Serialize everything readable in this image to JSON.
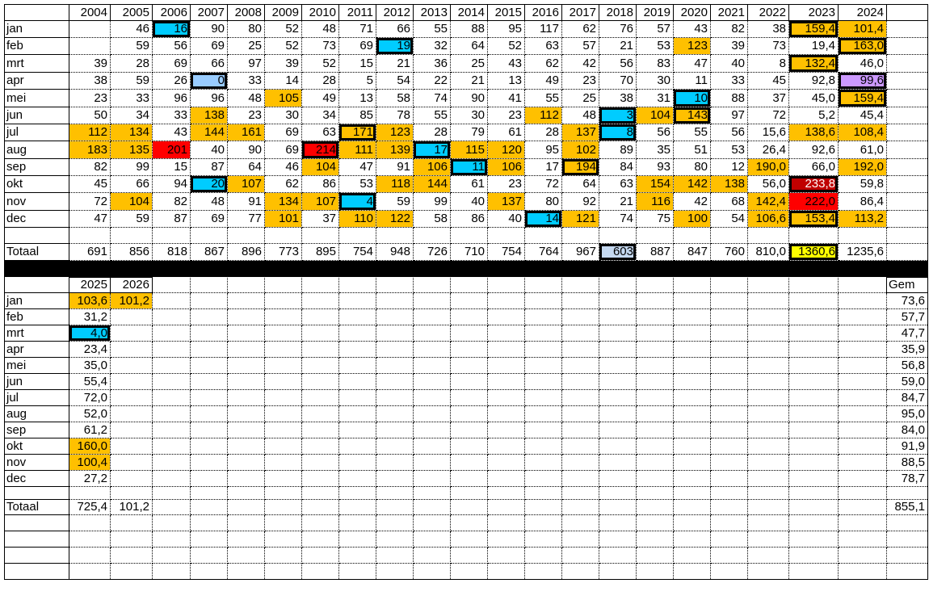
{
  "colors": {
    "orange": "#FFC000",
    "cyan": "#00CCFF",
    "lightblue": "#99CCFF",
    "red": "#FF0000",
    "darkred": "#C00000",
    "purple": "#CC99FF",
    "yellow": "#FFFF00",
    "grayblue": "#C5D9F1"
  },
  "upper": {
    "years": [
      "2004",
      "2005",
      "2006",
      "2007",
      "2008",
      "2009",
      "2010",
      "2011",
      "2012",
      "2013",
      "2014",
      "2015",
      "2016",
      "2017",
      "2018",
      "2019",
      "2020",
      "2021",
      "2022",
      "2023",
      "2024"
    ],
    "rows": [
      {
        "label": "jan",
        "values": [
          "",
          "46",
          "16",
          "90",
          "80",
          "52",
          "48",
          "71",
          "66",
          "55",
          "88",
          "95",
          "117",
          "62",
          "76",
          "57",
          "43",
          "82",
          "38",
          "159,4",
          "101,4"
        ]
      },
      {
        "label": "feb",
        "values": [
          "",
          "59",
          "56",
          "69",
          "25",
          "52",
          "73",
          "69",
          "19",
          "32",
          "64",
          "52",
          "63",
          "57",
          "21",
          "53",
          "123",
          "39",
          "73",
          "19,4",
          "163,0"
        ]
      },
      {
        "label": "mrt",
        "values": [
          "39",
          "28",
          "69",
          "66",
          "97",
          "39",
          "52",
          "15",
          "21",
          "36",
          "25",
          "43",
          "62",
          "42",
          "56",
          "83",
          "47",
          "40",
          "8",
          "132,4",
          "46,0"
        ]
      },
      {
        "label": "apr",
        "values": [
          "38",
          "59",
          "26",
          "0",
          "33",
          "14",
          "28",
          "5",
          "54",
          "22",
          "21",
          "13",
          "49",
          "23",
          "70",
          "30",
          "11",
          "33",
          "45",
          "92,8",
          "99,6"
        ]
      },
      {
        "label": "mei",
        "values": [
          "23",
          "33",
          "96",
          "96",
          "48",
          "105",
          "49",
          "13",
          "58",
          "74",
          "90",
          "41",
          "55",
          "25",
          "38",
          "31",
          "10",
          "88",
          "37",
          "45,0",
          "159,4"
        ]
      },
      {
        "label": "jun",
        "values": [
          "50",
          "34",
          "33",
          "138",
          "23",
          "30",
          "34",
          "85",
          "78",
          "55",
          "30",
          "23",
          "112",
          "48",
          "3",
          "104",
          "143",
          "97",
          "72",
          "5,2",
          "45,4"
        ]
      },
      {
        "label": "jul",
        "values": [
          "112",
          "134",
          "43",
          "144",
          "161",
          "69",
          "63",
          "171",
          "123",
          "28",
          "79",
          "61",
          "28",
          "137",
          "8",
          "56",
          "55",
          "56",
          "15,6",
          "138,6",
          "108,4"
        ]
      },
      {
        "label": "aug",
        "values": [
          "183",
          "135",
          "201",
          "40",
          "90",
          "69",
          "214",
          "111",
          "139",
          "17",
          "115",
          "120",
          "95",
          "102",
          "89",
          "35",
          "51",
          "53",
          "26,4",
          "92,6",
          "61,0"
        ]
      },
      {
        "label": "sep",
        "values": [
          "82",
          "99",
          "15",
          "87",
          "64",
          "46",
          "104",
          "47",
          "91",
          "106",
          "11",
          "106",
          "17",
          "194",
          "84",
          "93",
          "80",
          "12",
          "190,0",
          "66,0",
          "192,0"
        ]
      },
      {
        "label": "okt",
        "values": [
          "45",
          "66",
          "94",
          "20",
          "107",
          "62",
          "86",
          "53",
          "118",
          "144",
          "61",
          "23",
          "72",
          "64",
          "63",
          "154",
          "142",
          "138",
          "56,0",
          "233,8",
          "59,8"
        ]
      },
      {
        "label": "nov",
        "values": [
          "72",
          "104",
          "82",
          "48",
          "91",
          "134",
          "107",
          "4",
          "59",
          "99",
          "40",
          "137",
          "80",
          "92",
          "21",
          "116",
          "42",
          "68",
          "142,4",
          "222,0",
          "86,4"
        ]
      },
      {
        "label": "dec",
        "values": [
          "47",
          "59",
          "87",
          "69",
          "77",
          "101",
          "37",
          "110",
          "122",
          "58",
          "86",
          "40",
          "14",
          "121",
          "74",
          "75",
          "100",
          "54",
          "106,6",
          "153,4",
          "113,2"
        ]
      }
    ],
    "total": {
      "label": "Totaal",
      "values": [
        "691",
        "856",
        "818",
        "867",
        "896",
        "773",
        "895",
        "754",
        "948",
        "726",
        "710",
        "754",
        "764",
        "967",
        "603",
        "887",
        "847",
        "760",
        "810,0",
        "1360,6",
        "1235,6"
      ]
    },
    "highlights": [
      {
        "row": "jul",
        "year": "2004",
        "fill": "orange"
      },
      {
        "row": "aug",
        "year": "2004",
        "fill": "orange"
      },
      {
        "row": "jul",
        "year": "2005",
        "fill": "orange"
      },
      {
        "row": "aug",
        "year": "2005",
        "fill": "orange"
      },
      {
        "row": "nov",
        "year": "2005",
        "fill": "orange"
      },
      {
        "row": "jan",
        "year": "2006",
        "fill": "cyan",
        "boxed": true
      },
      {
        "row": "aug",
        "year": "2006",
        "fill": "red"
      },
      {
        "row": "apr",
        "year": "2007",
        "fill": "lightblue",
        "boxed": true
      },
      {
        "row": "jun",
        "year": "2007",
        "fill": "orange"
      },
      {
        "row": "jul",
        "year": "2007",
        "fill": "orange"
      },
      {
        "row": "okt",
        "year": "2007",
        "fill": "cyan",
        "boxed": true
      },
      {
        "row": "jul",
        "year": "2008",
        "fill": "orange"
      },
      {
        "row": "okt",
        "year": "2008",
        "fill": "orange"
      },
      {
        "row": "mei",
        "year": "2009",
        "fill": "orange"
      },
      {
        "row": "nov",
        "year": "2009",
        "fill": "orange"
      },
      {
        "row": "dec",
        "year": "2009",
        "fill": "orange"
      },
      {
        "row": "aug",
        "year": "2010",
        "fill": "red",
        "boxed": true
      },
      {
        "row": "sep",
        "year": "2010",
        "fill": "orange"
      },
      {
        "row": "nov",
        "year": "2010",
        "fill": "orange"
      },
      {
        "row": "jul",
        "year": "2011",
        "fill": "orange",
        "boxed": true
      },
      {
        "row": "aug",
        "year": "2011",
        "fill": "orange"
      },
      {
        "row": "nov",
        "year": "2011",
        "fill": "cyan",
        "boxed": true
      },
      {
        "row": "dec",
        "year": "2011",
        "fill": "orange"
      },
      {
        "row": "feb",
        "year": "2012",
        "fill": "cyan",
        "boxed": true
      },
      {
        "row": "jul",
        "year": "2012",
        "fill": "orange"
      },
      {
        "row": "aug",
        "year": "2012",
        "fill": "orange"
      },
      {
        "row": "okt",
        "year": "2012",
        "fill": "orange"
      },
      {
        "row": "dec",
        "year": "2012",
        "fill": "orange"
      },
      {
        "row": "aug",
        "year": "2013",
        "fill": "cyan",
        "boxed": true
      },
      {
        "row": "sep",
        "year": "2013",
        "fill": "orange"
      },
      {
        "row": "okt",
        "year": "2013",
        "fill": "orange"
      },
      {
        "row": "aug",
        "year": "2014",
        "fill": "orange"
      },
      {
        "row": "sep",
        "year": "2014",
        "fill": "cyan",
        "boxed": true
      },
      {
        "row": "aug",
        "year": "2015",
        "fill": "orange"
      },
      {
        "row": "sep",
        "year": "2015",
        "fill": "orange"
      },
      {
        "row": "nov",
        "year": "2015",
        "fill": "orange"
      },
      {
        "row": "jun",
        "year": "2016",
        "fill": "orange"
      },
      {
        "row": "dec",
        "year": "2016",
        "fill": "cyan",
        "boxed": true
      },
      {
        "row": "jul",
        "year": "2017",
        "fill": "orange"
      },
      {
        "row": "aug",
        "year": "2017",
        "fill": "orange"
      },
      {
        "row": "sep",
        "year": "2017",
        "fill": "orange",
        "boxed": true
      },
      {
        "row": "dec",
        "year": "2017",
        "fill": "orange"
      },
      {
        "row": "jun",
        "year": "2018",
        "fill": "cyan",
        "boxed": true
      },
      {
        "row": "jul",
        "year": "2018",
        "fill": "cyan",
        "boxed": true
      },
      {
        "row": "Totaal",
        "year": "2018",
        "fill": "grayblue",
        "boxed": true
      },
      {
        "row": "jun",
        "year": "2019",
        "fill": "orange"
      },
      {
        "row": "okt",
        "year": "2019",
        "fill": "orange"
      },
      {
        "row": "nov",
        "year": "2019",
        "fill": "orange"
      },
      {
        "row": "feb",
        "year": "2020",
        "fill": "orange"
      },
      {
        "row": "mei",
        "year": "2020",
        "fill": "cyan",
        "boxed": true
      },
      {
        "row": "jun",
        "year": "2020",
        "fill": "orange",
        "boxed": true
      },
      {
        "row": "okt",
        "year": "2020",
        "fill": "orange"
      },
      {
        "row": "dec",
        "year": "2020",
        "fill": "orange"
      },
      {
        "row": "okt",
        "year": "2021",
        "fill": "orange"
      },
      {
        "row": "sep",
        "year": "2022",
        "fill": "orange"
      },
      {
        "row": "nov",
        "year": "2022",
        "fill": "orange"
      },
      {
        "row": "dec",
        "year": "2022",
        "fill": "orange"
      },
      {
        "row": "jan",
        "year": "2023",
        "fill": "orange",
        "boxed": true
      },
      {
        "row": "mrt",
        "year": "2023",
        "fill": "orange",
        "boxed": true
      },
      {
        "row": "jul",
        "year": "2023",
        "fill": "orange"
      },
      {
        "row": "okt",
        "year": "2023",
        "fill": "darkred",
        "boxed": true,
        "text": "#FFFFFF"
      },
      {
        "row": "nov",
        "year": "2023",
        "fill": "red"
      },
      {
        "row": "dec",
        "year": "2023",
        "fill": "orange",
        "boxed": true
      },
      {
        "row": "Totaal",
        "year": "2023",
        "fill": "yellow",
        "boxed": true
      },
      {
        "row": "jan",
        "year": "2024",
        "fill": "orange"
      },
      {
        "row": "feb",
        "year": "2024",
        "fill": "orange",
        "boxed": true
      },
      {
        "row": "apr",
        "year": "2024",
        "fill": "purple",
        "boxed": true
      },
      {
        "row": "mei",
        "year": "2024",
        "fill": "orange",
        "boxed": true
      },
      {
        "row": "jul",
        "year": "2024",
        "fill": "orange"
      },
      {
        "row": "sep",
        "year": "2024",
        "fill": "orange"
      },
      {
        "row": "dec",
        "year": "2024",
        "fill": "orange"
      }
    ]
  },
  "lower": {
    "years": [
      "2025",
      "2026"
    ],
    "avg_header": "Gem",
    "rows": [
      {
        "label": "jan",
        "values": [
          "103,6",
          "101,2"
        ],
        "avg": "73,6"
      },
      {
        "label": "feb",
        "values": [
          "31,2",
          ""
        ],
        "avg": "57,7"
      },
      {
        "label": "mrt",
        "values": [
          "4,0",
          ""
        ],
        "avg": "47,7"
      },
      {
        "label": "apr",
        "values": [
          "23,4",
          ""
        ],
        "avg": "35,9"
      },
      {
        "label": "mei",
        "values": [
          "35,0",
          ""
        ],
        "avg": "56,8"
      },
      {
        "label": "jun",
        "values": [
          "55,4",
          ""
        ],
        "avg": "59,0"
      },
      {
        "label": "jul",
        "values": [
          "72,0",
          ""
        ],
        "avg": "84,7"
      },
      {
        "label": "aug",
        "values": [
          "52,0",
          ""
        ],
        "avg": "95,0"
      },
      {
        "label": "sep",
        "values": [
          "61,2",
          ""
        ],
        "avg": "84,0"
      },
      {
        "label": "okt",
        "values": [
          "160,0",
          ""
        ],
        "avg": "91,9"
      },
      {
        "label": "nov",
        "values": [
          "100,4",
          ""
        ],
        "avg": "88,5"
      },
      {
        "label": "dec",
        "values": [
          "27,2",
          ""
        ],
        "avg": "78,7"
      }
    ],
    "total": {
      "label": "Totaal",
      "values": [
        "725,4",
        "101,2"
      ],
      "avg": "855,1"
    },
    "highlights": [
      {
        "row": "jan",
        "year": "2025",
        "fill": "orange"
      },
      {
        "row": "jan",
        "year": "2026",
        "fill": "orange"
      },
      {
        "row": "mrt",
        "year": "2025",
        "fill": "cyan",
        "boxed": true
      },
      {
        "row": "okt",
        "year": "2025",
        "fill": "orange"
      },
      {
        "row": "nov",
        "year": "2025",
        "fill": "orange"
      }
    ]
  }
}
